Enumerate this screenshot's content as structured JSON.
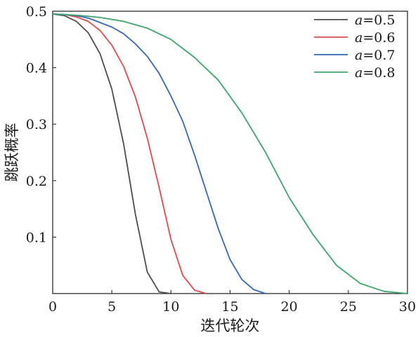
{
  "chart_data": {
    "type": "line",
    "xlabel": "迭代轮次",
    "ylabel": "跳跃概率",
    "xlim": [
      0,
      30
    ],
    "ylim": [
      0,
      0.5
    ],
    "xticks": [
      0,
      5,
      10,
      15,
      20,
      25,
      30
    ],
    "yticks": [
      0.1,
      0.2,
      0.3,
      0.4,
      0.5
    ],
    "xtick_labels": [
      "0",
      "5",
      "10",
      "15",
      "20",
      "25",
      "30"
    ],
    "ytick_labels": [
      "0.1",
      "0.2",
      "0.3",
      "0.4",
      "0.5"
    ],
    "grid": false,
    "legend_position": "top-right",
    "series": [
      {
        "name": "a=0.5",
        "label_var": "a",
        "label_value": "=0.5",
        "color": "#4d4d4d",
        "x": [
          0,
          1,
          2,
          3,
          4,
          5,
          6,
          7,
          8,
          9,
          10
        ],
        "y": [
          0.495,
          0.492,
          0.482,
          0.462,
          0.425,
          0.362,
          0.265,
          0.14,
          0.038,
          0.003,
          0.0
        ]
      },
      {
        "name": "a=0.6",
        "label_var": "a",
        "label_value": "=0.6",
        "color": "#dd4b4b",
        "x": [
          0,
          1,
          2,
          3,
          4,
          5,
          6,
          7,
          8,
          9,
          10,
          11,
          12,
          13
        ],
        "y": [
          0.495,
          0.494,
          0.49,
          0.482,
          0.466,
          0.44,
          0.402,
          0.348,
          0.275,
          0.188,
          0.096,
          0.032,
          0.006,
          0.0
        ]
      },
      {
        "name": "a=0.7",
        "label_var": "a",
        "label_value": "=0.7",
        "color": "#3568b4",
        "x": [
          0,
          1,
          2,
          3,
          4,
          5,
          6,
          7,
          8,
          9,
          10,
          11,
          12,
          13,
          14,
          15,
          16,
          17,
          18
        ],
        "y": [
          0.495,
          0.494,
          0.492,
          0.488,
          0.48,
          0.472,
          0.46,
          0.442,
          0.42,
          0.39,
          0.35,
          0.305,
          0.245,
          0.18,
          0.115,
          0.06,
          0.025,
          0.007,
          0.0
        ]
      },
      {
        "name": "a=0.8",
        "label_var": "a",
        "label_value": "=0.8",
        "color": "#3fa46b",
        "x": [
          0,
          2,
          4,
          6,
          8,
          10,
          12,
          14,
          16,
          18,
          20,
          22,
          24,
          26,
          28,
          30
        ],
        "y": [
          0.495,
          0.493,
          0.489,
          0.482,
          0.47,
          0.45,
          0.418,
          0.378,
          0.32,
          0.25,
          0.17,
          0.105,
          0.05,
          0.018,
          0.004,
          0.0
        ]
      }
    ]
  }
}
